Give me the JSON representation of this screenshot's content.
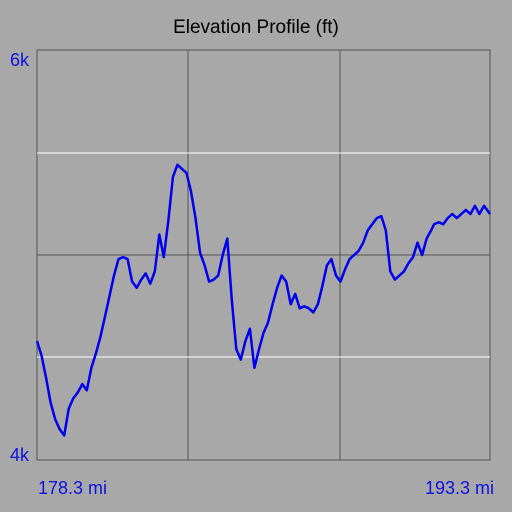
{
  "chart_data": {
    "type": "line",
    "title": "Elevation Profile (ft)",
    "y_tick_labels": [
      "6k",
      "4k"
    ],
    "x_tick_labels": [
      "178.3 mi",
      "193.3 mi"
    ],
    "xlim": [
      178.3,
      193.3
    ],
    "ylim": [
      4000,
      6000
    ],
    "grid": true,
    "series": [
      {
        "color": "#0000ee",
        "x": [
          178.3,
          178.45,
          178.6,
          178.75,
          178.9,
          179.05,
          179.2,
          179.35,
          179.5,
          179.65,
          179.8,
          179.95,
          180.1,
          180.25,
          180.4,
          180.55,
          180.7,
          180.85,
          181.0,
          181.15,
          181.3,
          181.45,
          181.6,
          181.75,
          181.9,
          182.05,
          182.2,
          182.35,
          182.5,
          182.65,
          182.8,
          182.95,
          183.1,
          183.25,
          183.4,
          183.55,
          183.7,
          183.85,
          184.0,
          184.15,
          184.3,
          184.45,
          184.6,
          184.75,
          184.9,
          185.05,
          185.2,
          185.35,
          185.5,
          185.65,
          185.8,
          185.95,
          186.1,
          186.25,
          186.4,
          186.55,
          186.7,
          186.85,
          187.0,
          187.15,
          187.3,
          187.45,
          187.6,
          187.75,
          187.9,
          188.05,
          188.2,
          188.35,
          188.5,
          188.65,
          188.8,
          188.95,
          189.1,
          189.25,
          189.4,
          189.55,
          189.7,
          189.85,
          190.0,
          190.15,
          190.3,
          190.45,
          190.6,
          190.75,
          190.9,
          191.05,
          191.2,
          191.35,
          191.45,
          191.6,
          191.75,
          191.9,
          192.05,
          192.2,
          192.35,
          192.5,
          192.65,
          192.8,
          192.95,
          193.1,
          193.3
        ],
        "y": [
          4580,
          4510,
          4400,
          4280,
          4200,
          4150,
          4120,
          4250,
          4300,
          4330,
          4370,
          4340,
          4450,
          4520,
          4600,
          4700,
          4800,
          4900,
          4980,
          4990,
          4980,
          4870,
          4840,
          4880,
          4910,
          4860,
          4920,
          5100,
          4990,
          5170,
          5380,
          5440,
          5420,
          5400,
          5310,
          5180,
          5010,
          4950,
          4870,
          4880,
          4900,
          5000,
          5080,
          4780,
          4540,
          4490,
          4580,
          4640,
          4450,
          4540,
          4620,
          4670,
          4760,
          4840,
          4900,
          4870,
          4760,
          4810,
          4740,
          4750,
          4740,
          4720,
          4760,
          4850,
          4950,
          4980,
          4900,
          4870,
          4930,
          4980,
          5000,
          5020,
          5060,
          5120,
          5150,
          5180,
          5190,
          5120,
          4920,
          4880,
          4900,
          4920,
          4960,
          4990,
          5060,
          5000,
          5080,
          5120,
          5150,
          5160,
          5150,
          5180,
          5200,
          5180,
          5200,
          5220,
          5200,
          5240,
          5200,
          5240,
          5200
        ]
      }
    ]
  }
}
